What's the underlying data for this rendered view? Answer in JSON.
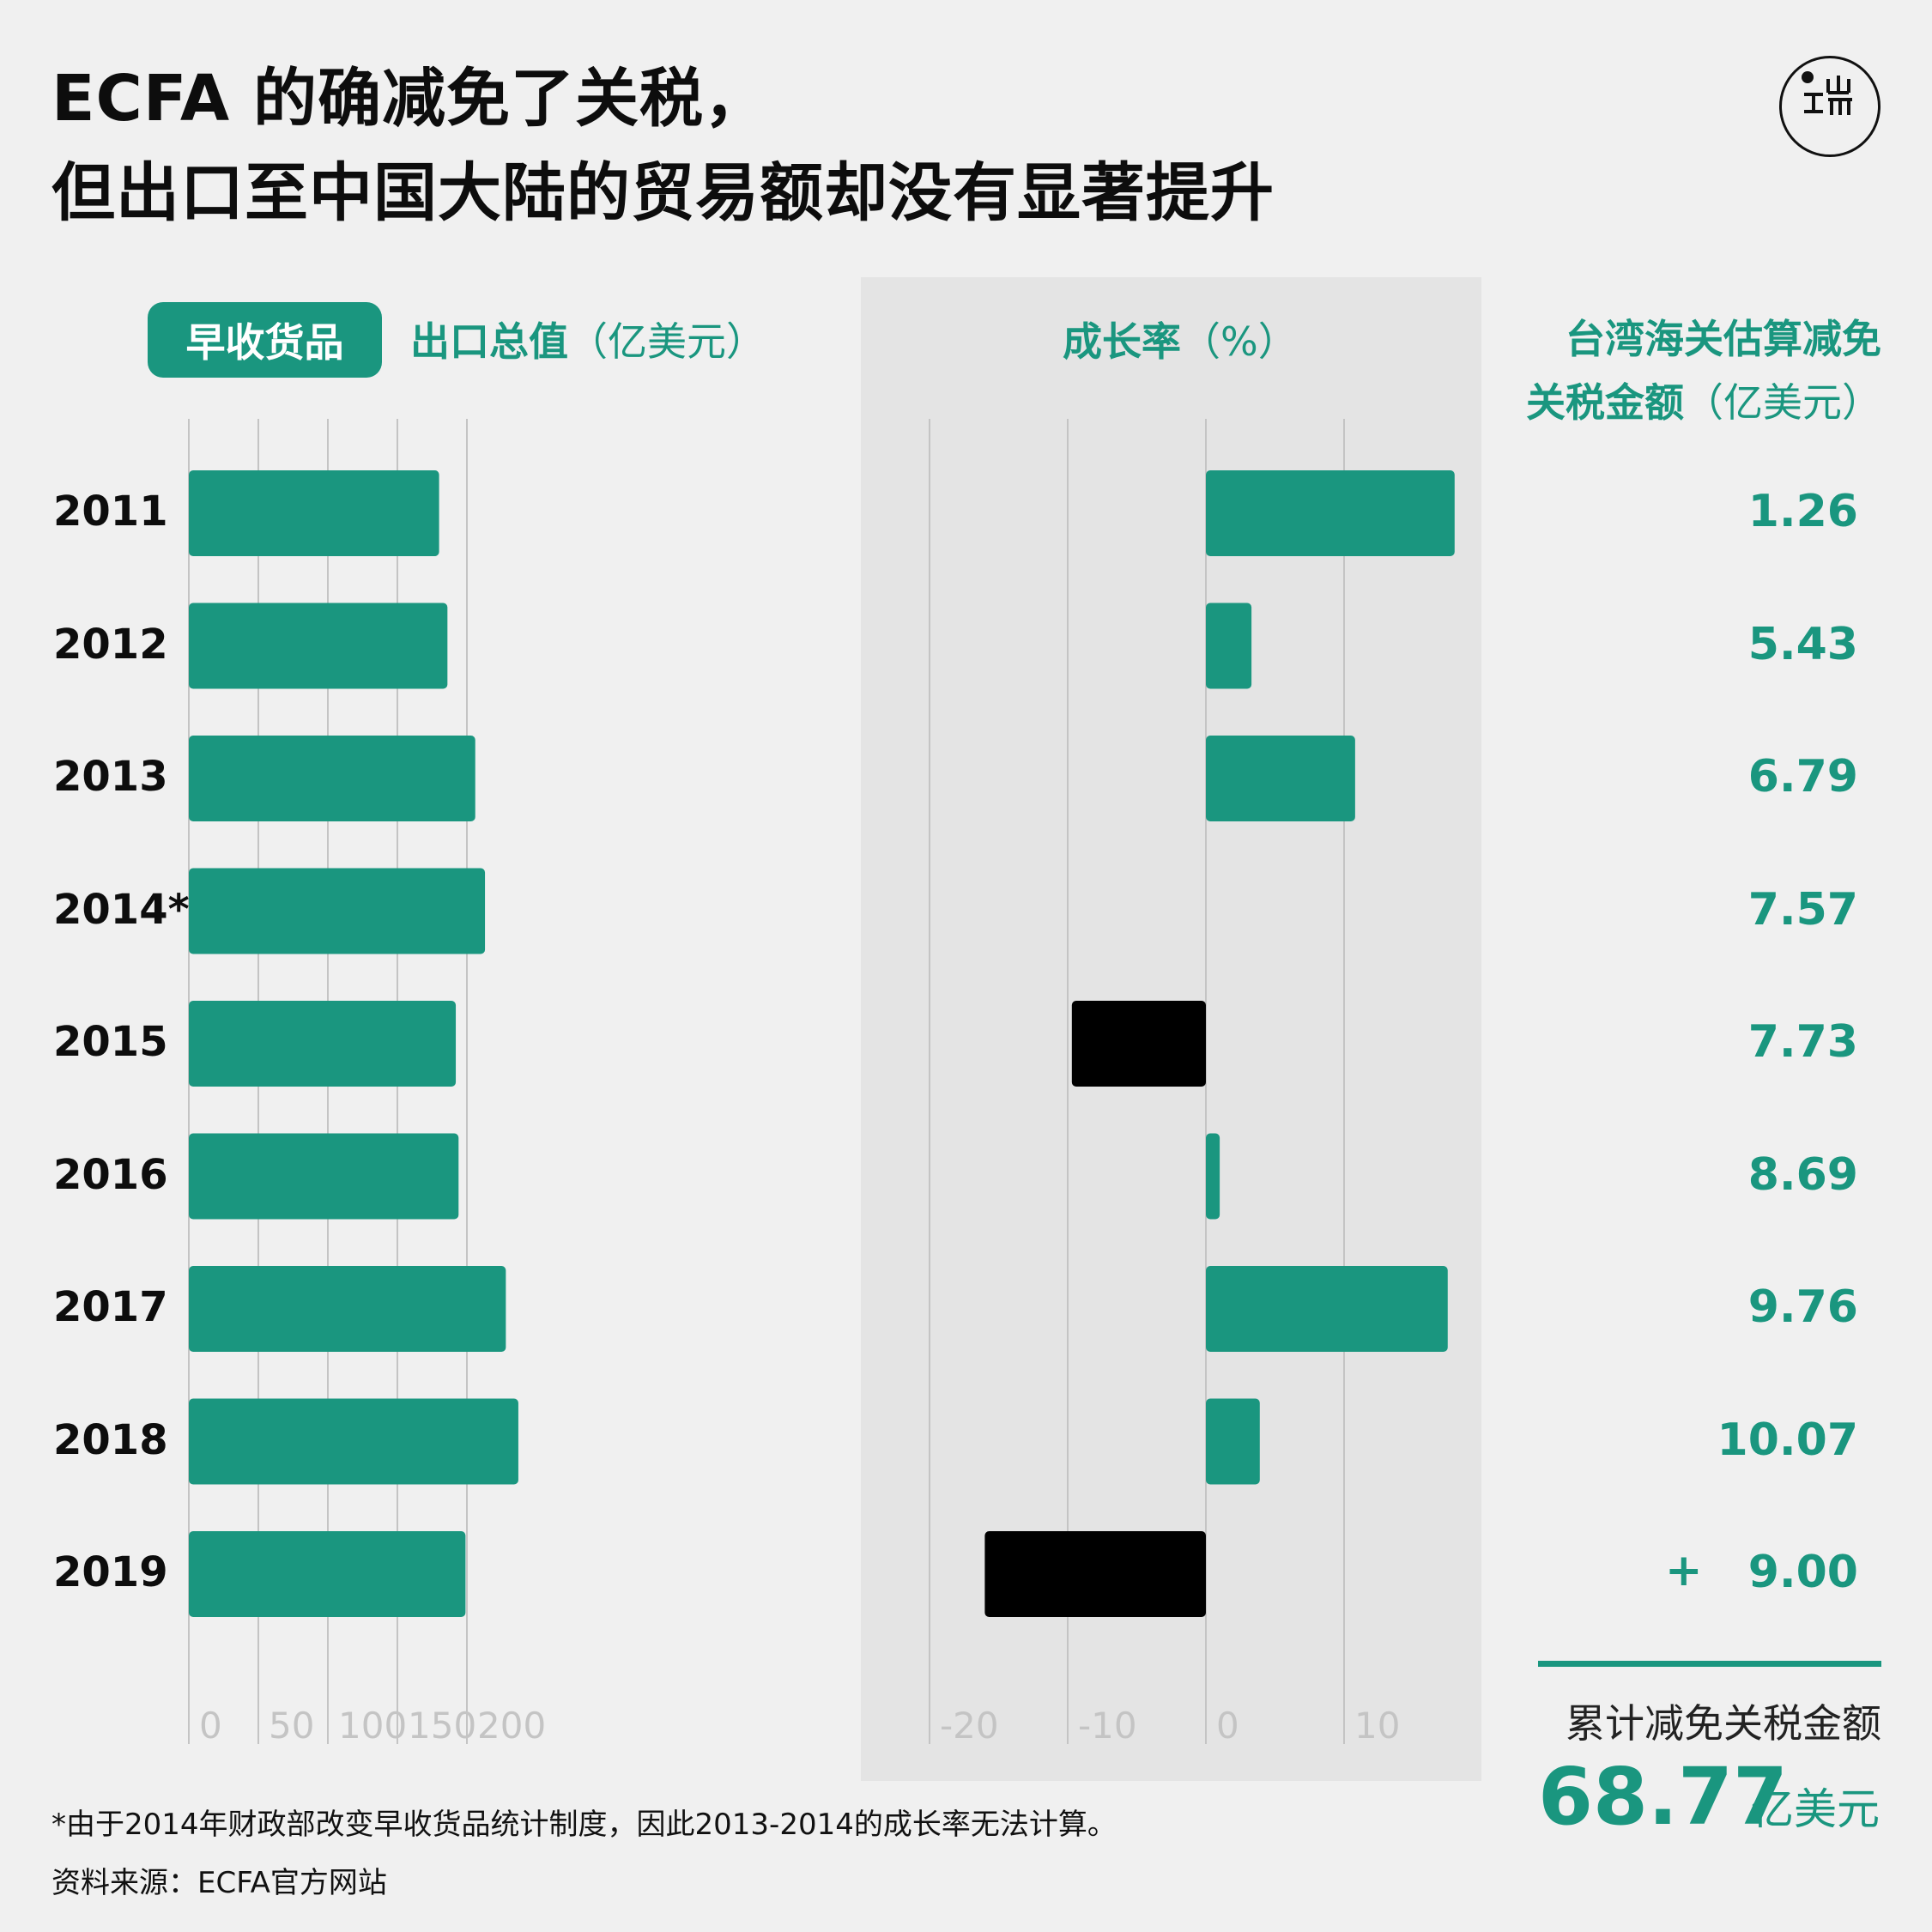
{
  "title": {
    "line1": "ECFA 的确减免了关税，",
    "line2": "但出口至中国大陆的贸易额却没有显著提升"
  },
  "logo_icon": "initium-logo-icon",
  "colors": {
    "accent": "#1a967f",
    "negative": "#000000",
    "panel": "#e4e4e4",
    "background": "#f0f0f0",
    "grid": "#c4c4c4"
  },
  "headers": {
    "pill": "早收货品",
    "export_bold": "出口总值",
    "export_unit": "（亿美元）",
    "growth_bold": "成长率",
    "growth_unit": "（%）",
    "savings_line1": "台湾海关估算减免",
    "savings_line2_bold": "关税金额",
    "savings_line2_unit": "（亿美元）"
  },
  "summary": {
    "label": "累计减免关税金额",
    "value": "68.77",
    "unit": "亿美元",
    "plus_sign": "+"
  },
  "footnote": "*由于2014年财政部改变早收货品统计制度，因此2013-2014的成长率无法计算。",
  "source": "资料来源：ECFA官方网站",
  "chart_data": [
    {
      "type": "bar",
      "orientation": "horizontal",
      "categories": [
        "2011",
        "2012",
        "2013",
        "2014*",
        "2015",
        "2016",
        "2017",
        "2018",
        "2019"
      ],
      "values": [
        180,
        186,
        206,
        213,
        192,
        194,
        228,
        237,
        199
      ],
      "xlim": [
        0,
        240
      ],
      "xticks": [
        "0",
        "50",
        "100",
        "150",
        "200"
      ],
      "grid": true
    },
    {
      "type": "bar",
      "orientation": "horizontal",
      "categories": [
        "2011",
        "2012",
        "2013",
        "2014*",
        "2015",
        "2016",
        "2017",
        "2018",
        "2019"
      ],
      "values": [
        18,
        3.3,
        10.8,
        null,
        -9.7,
        1,
        17.5,
        3.9,
        -16
      ],
      "xlim": [
        -23,
        20
      ],
      "xticks": [
        "-20",
        "-10",
        "0",
        "10"
      ],
      "grid": true
    },
    {
      "type": "table",
      "rows": [
        "2011",
        "2012",
        "2013",
        "2014*",
        "2015",
        "2016",
        "2017",
        "2018",
        "2019"
      ],
      "values": [
        "1.26",
        "5.43",
        "6.79",
        "7.57",
        "7.73",
        "8.69",
        "9.76",
        "10.07",
        "9.00"
      ]
    }
  ]
}
